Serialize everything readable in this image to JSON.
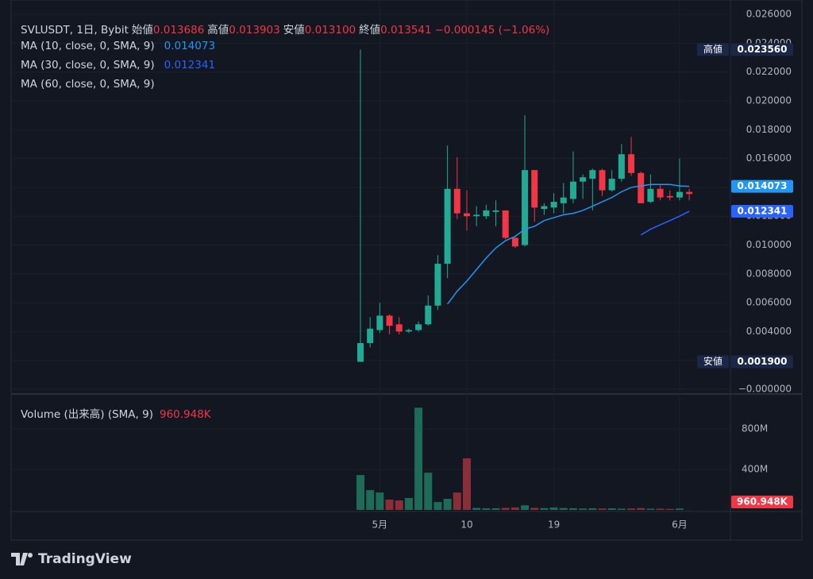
{
  "chart_data": {
    "type": "candlestick",
    "title": "SVLUSDT, 1日, Bybit",
    "ohlc_header": [
      {
        "label": "始値",
        "value": "0.013686"
      },
      {
        "label": "高値",
        "value": "0.013903"
      },
      {
        "label": "安値",
        "value": "0.013100"
      },
      {
        "label": "終値",
        "value": "0.013541"
      }
    ],
    "change": "−0.000145 (−1.06%)",
    "categories": [
      null,
      null,
      "5月",
      null,
      null,
      null,
      null,
      null,
      null,
      null,
      null,
      "10",
      null,
      null,
      null,
      null,
      null,
      null,
      null,
      null,
      "19",
      null,
      null,
      null,
      null,
      null,
      null,
      null,
      null,
      null,
      null,
      null,
      null,
      "6月",
      null
    ],
    "open": [
      0.0019,
      0.0032,
      0.0041,
      0.0051,
      0.0045,
      0.004,
      0.0041,
      0.0045,
      0.0058,
      0.0087,
      0.0139,
      0.0122,
      0.012,
      0.012,
      0.0123,
      0.0124,
      0.0105,
      0.01,
      0.0152,
      0.0125,
      0.0126,
      0.0129,
      0.0132,
      0.0144,
      0.0146,
      0.0152,
      0.0138,
      0.0146,
      0.0163,
      0.015,
      0.013,
      0.0139,
      0.0134,
      0.0133,
      0.013686
    ],
    "high": [
      0.02356,
      0.005,
      0.006,
      0.0052,
      0.005,
      0.0042,
      0.0047,
      0.0065,
      0.0093,
      0.0169,
      0.0161,
      0.0138,
      0.0127,
      0.0128,
      0.0131,
      0.0124,
      0.0106,
      0.019,
      0.0152,
      0.0129,
      0.0136,
      0.0143,
      0.0165,
      0.0149,
      0.0153,
      0.0153,
      0.0152,
      0.017,
      0.0175,
      0.0151,
      0.0149,
      0.0142,
      0.0138,
      0.016,
      0.013903
    ],
    "low": [
      0.0019,
      0.0029,
      0.0039,
      0.0038,
      0.0038,
      0.0039,
      0.004,
      0.0044,
      0.0055,
      0.0077,
      0.0118,
      0.011,
      0.0113,
      0.0118,
      0.0113,
      0.0104,
      0.0098,
      0.0099,
      0.0116,
      0.0121,
      0.0122,
      0.0122,
      0.0129,
      0.0132,
      0.0124,
      0.0134,
      0.0137,
      0.0144,
      0.0148,
      0.0129,
      0.0129,
      0.0131,
      0.0131,
      0.0131,
      0.0131
    ],
    "close": [
      0.0032,
      0.0042,
      0.0051,
      0.0044,
      0.004,
      0.0041,
      0.0045,
      0.0058,
      0.0087,
      0.0139,
      0.0122,
      0.012,
      0.0121,
      0.0124,
      0.0124,
      0.0105,
      0.0099,
      0.0152,
      0.0126,
      0.0127,
      0.013,
      0.0133,
      0.0144,
      0.0147,
      0.0152,
      0.0138,
      0.0146,
      0.0163,
      0.015,
      0.0129,
      0.0139,
      0.0133,
      0.0133,
      0.013686,
      0.013541
    ],
    "up_color": "#22ab94",
    "down_color": "#f23645",
    "ylim": [
      -0.00033,
      0.027
    ],
    "yticks": [
      {
        "value": 0.026,
        "label": "0.026000"
      },
      {
        "value": 0.024,
        "label": "0.024000"
      },
      {
        "value": 0.022,
        "label": "0.022000"
      },
      {
        "value": 0.02,
        "label": "0.020000"
      },
      {
        "value": 0.018,
        "label": "0.018000"
      },
      {
        "value": 0.016,
        "label": "0.016000"
      },
      {
        "value": 0.014,
        "label": "0.014000"
      },
      {
        "value": 0.012,
        "label": "0.012000"
      },
      {
        "value": 0.01,
        "label": "0.010000"
      },
      {
        "value": 0.008,
        "label": "0.008000"
      },
      {
        "value": 0.006,
        "label": "0.006000"
      },
      {
        "value": 0.004,
        "label": "0.004000"
      },
      {
        "value": 0.002,
        "label": "0.002000"
      },
      {
        "value": 0,
        "label": "−0.000000"
      }
    ],
    "grid": true,
    "high_marker": {
      "label": "高値",
      "value": 0.02356,
      "value_label": "0.023560"
    },
    "low_marker": {
      "label": "安値",
      "value": 0.0019,
      "value_label": "0.001900"
    },
    "ma": [
      {
        "name": "MA (10, close, 0, SMA, 9)",
        "color": "#2196f3",
        "values": [
          null,
          null,
          null,
          null,
          null,
          null,
          null,
          null,
          null,
          0.0059,
          0.0068,
          0.0075,
          0.0083,
          0.0091,
          0.0098,
          0.0103,
          0.0106,
          0.0111,
          0.0113,
          0.0117,
          0.0119,
          0.0121,
          0.0122,
          0.0124,
          0.0127,
          0.013,
          0.0133,
          0.0137,
          0.014,
          0.0141,
          0.0142,
          0.0142,
          0.0142,
          0.0141,
          0.014073
        ]
      },
      {
        "name": "MA (30, close, 0, SMA, 9)",
        "color": "#2962ff",
        "values": [
          null,
          null,
          null,
          null,
          null,
          null,
          null,
          null,
          null,
          null,
          null,
          null,
          null,
          null,
          null,
          null,
          null,
          null,
          null,
          null,
          null,
          null,
          null,
          null,
          null,
          null,
          null,
          null,
          null,
          0.0107,
          0.0111,
          0.0114,
          0.0117,
          0.012,
          0.012341
        ]
      },
      {
        "name": "MA (60, close, 0, SMA, 9)",
        "color": "#ff9800",
        "values": [
          null,
          null,
          null,
          null,
          null,
          null,
          null,
          null,
          null,
          null,
          null,
          null,
          null,
          null,
          null,
          null,
          null,
          null,
          null,
          null,
          null,
          null,
          null,
          null,
          null,
          null,
          null,
          null,
          null,
          null,
          null,
          null,
          null,
          null,
          null
        ]
      }
    ],
    "volume": {
      "title": "Volume (出来高) (SMA, 9)",
      "values": [
        345000000,
        196000000,
        172000000,
        102000000,
        94000000,
        118000000,
        1011000000,
        368000000,
        78000000,
        110000000,
        172000000,
        510000000,
        20000000,
        16000000,
        16000000,
        20000000,
        24000000,
        45000000,
        20000000,
        18000000,
        24000000,
        18000000,
        16000000,
        14000000,
        16000000,
        14000000,
        16000000,
        12000000,
        14000000,
        18000000,
        12000000,
        12000000,
        10000000,
        14000000,
        960948
      ],
      "value_labels": [
        null,
        null,
        null,
        null,
        null,
        null,
        null,
        null,
        null,
        null,
        null,
        null,
        null,
        null,
        null,
        null,
        null,
        null,
        null,
        null,
        null,
        null,
        null,
        null,
        null,
        null,
        null,
        null,
        null,
        null,
        null,
        null,
        null,
        null,
        "960.948K"
      ],
      "ylim": [
        0,
        1100000000
      ],
      "yticks": [
        {
          "value": 800000000,
          "label": "800M"
        },
        {
          "value": 400000000,
          "label": "400M"
        }
      ],
      "up_color": "#1e6b58",
      "down_color": "#8a2f37"
    }
  },
  "branding": "TradingView"
}
